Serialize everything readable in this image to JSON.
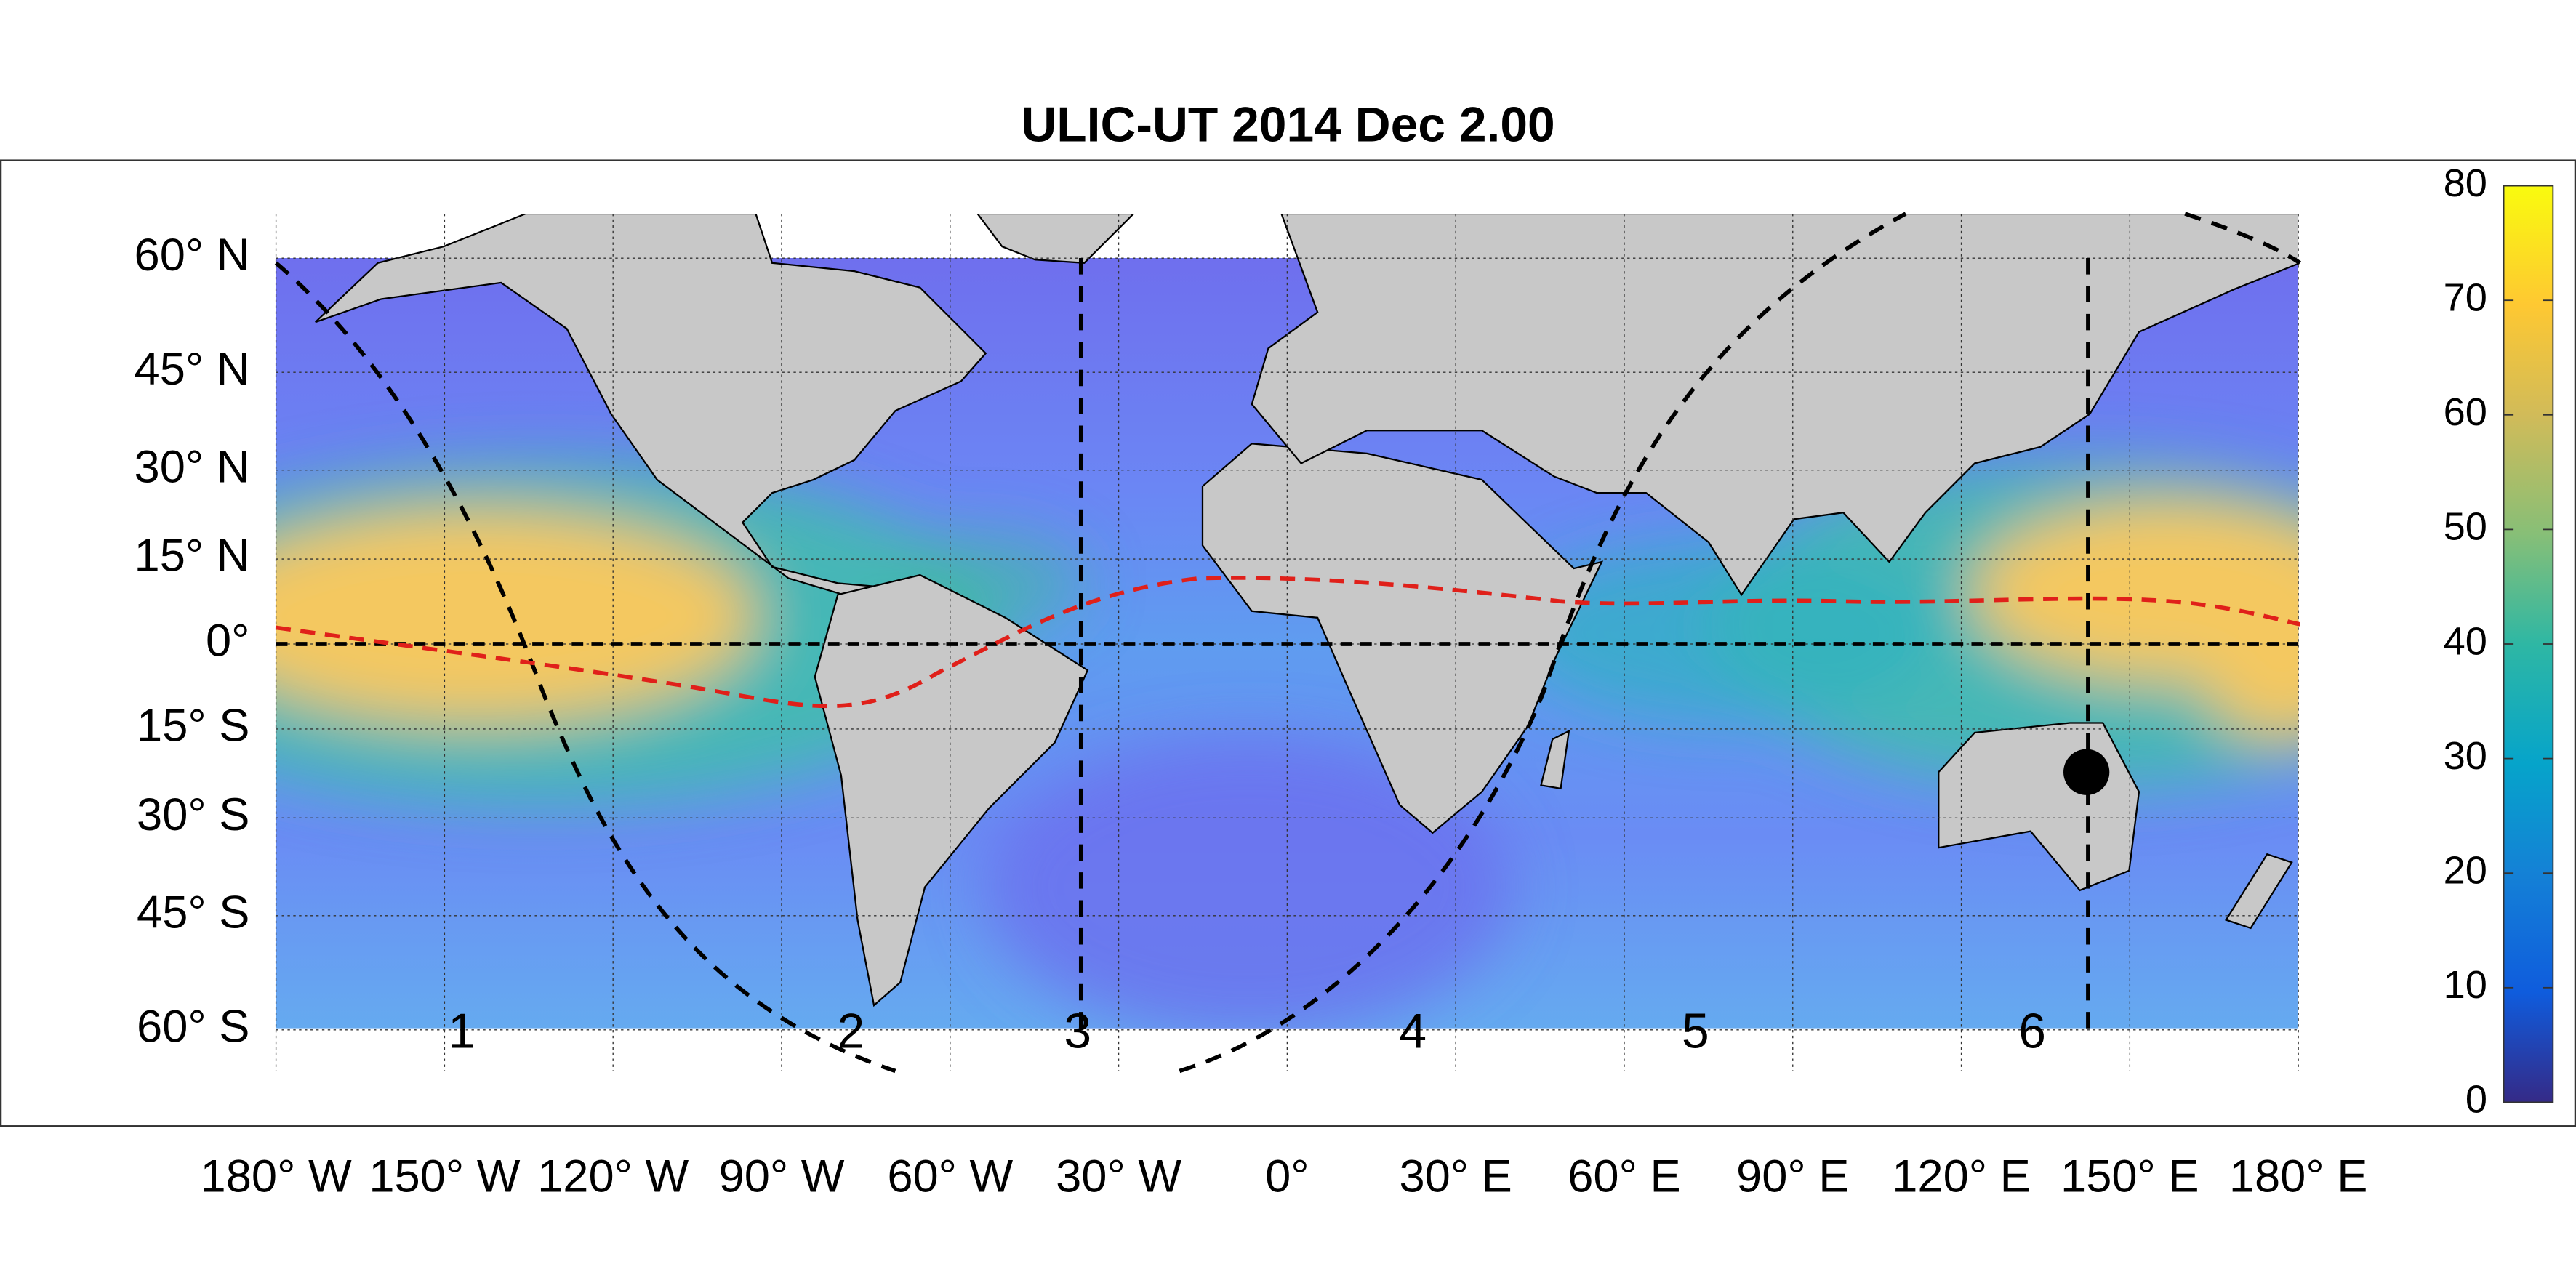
{
  "title": "ULIC-UT 2014 Dec  2.00",
  "lat_ticks": [
    {
      "value": 60,
      "label": "60° N"
    },
    {
      "value": 45,
      "label": "45° N"
    },
    {
      "value": 30,
      "label": "30° N"
    },
    {
      "value": 15,
      "label": "15° N"
    },
    {
      "value": 0,
      "label": "0°"
    },
    {
      "value": -15,
      "label": "15° S"
    },
    {
      "value": -30,
      "label": "30° S"
    },
    {
      "value": -45,
      "label": "45° S"
    },
    {
      "value": -60,
      "label": "60° S"
    }
  ],
  "lon_ticks": [
    {
      "value": -180,
      "label": "180° W"
    },
    {
      "value": -150,
      "label": "150° W"
    },
    {
      "value": -120,
      "label": "120° W"
    },
    {
      "value": -90,
      "label": "90° W"
    },
    {
      "value": -60,
      "label": "60° W"
    },
    {
      "value": -30,
      "label": "30° W"
    },
    {
      "value": 0,
      "label": "0°"
    },
    {
      "value": 30,
      "label": "30° E"
    },
    {
      "value": 60,
      "label": "60° E"
    },
    {
      "value": 90,
      "label": "90° E"
    },
    {
      "value": 120,
      "label": "120° E"
    },
    {
      "value": 150,
      "label": "150° E"
    },
    {
      "value": 180,
      "label": "180° E"
    }
  ],
  "colorbar": {
    "lim": [
      0,
      80
    ],
    "ticks": [
      0,
      10,
      20,
      30,
      40,
      50,
      60,
      70,
      80
    ]
  },
  "region_labels": [
    "1",
    "2",
    "3",
    "4",
    "5",
    "6"
  ]
}
